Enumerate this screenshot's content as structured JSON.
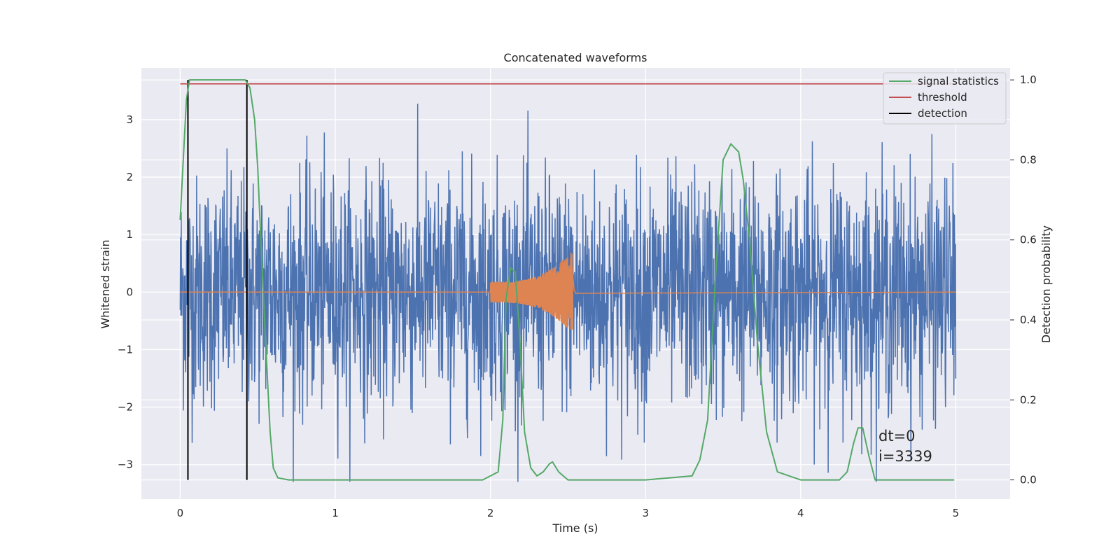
{
  "chart_data": {
    "type": "line",
    "title": "Concatenated waveforms",
    "xlabel": "Time (s)",
    "ylabel": "Whitened strain",
    "ylabel_right": "Detection probability",
    "xlim": [
      -0.25,
      5.35
    ],
    "ylim": [
      -3.6,
      3.9
    ],
    "ylim_right": [
      -0.048,
      1.03
    ],
    "x_ticks": [
      0,
      1,
      2,
      3,
      4,
      5
    ],
    "y_ticks": [
      -3,
      -2,
      -1,
      0,
      1,
      2,
      3
    ],
    "y_ticks_right": [
      0.0,
      0.2,
      0.4,
      0.6,
      0.8,
      1.0
    ],
    "grid": true,
    "legend_position": "upper right",
    "colors": {
      "strain": "#4c72b0",
      "waveform": "#dd8452",
      "signal": "#55a868",
      "threshold": "#c44e52",
      "detection": "#000000",
      "background": "#eaeaf2"
    },
    "legend": [
      "signal statistics",
      "threshold",
      "detection"
    ],
    "series": [
      {
        "axis": "left",
        "kind": "noise",
        "x_range": [
          0,
          5
        ],
        "amplitude_range": [
          -3.3,
          3.3
        ]
      },
      {
        "axis": "left",
        "kind": "chirp",
        "x_range": [
          2.0,
          2.53
        ],
        "amplitude_range": [
          -0.65,
          0.75
        ]
      },
      {
        "name": "signal statistics",
        "axis": "right",
        "x": [
          0,
          0.02,
          0.04,
          0.06,
          0.08,
          0.1,
          0.2,
          0.3,
          0.38,
          0.42,
          0.45,
          0.48,
          0.5,
          0.52,
          0.55,
          0.58,
          0.6,
          0.63,
          0.7,
          1.0,
          1.5,
          1.95,
          2.05,
          2.08,
          2.1,
          2.13,
          2.16,
          2.19,
          2.22,
          2.26,
          2.3,
          2.34,
          2.38,
          2.4,
          2.44,
          2.5,
          2.6,
          3.0,
          3.3,
          3.35,
          3.4,
          3.45,
          3.5,
          3.55,
          3.6,
          3.63,
          3.67,
          3.72,
          3.78,
          3.85,
          4.0,
          4.25,
          4.3,
          4.34,
          4.37,
          4.4,
          4.44,
          4.48,
          4.55,
          4.7,
          4.99
        ],
        "y": [
          0.65,
          0.8,
          0.95,
          1.0,
          1.0,
          1.0,
          1.0,
          1.0,
          1.0,
          1.0,
          0.98,
          0.9,
          0.78,
          0.6,
          0.35,
          0.12,
          0.03,
          0.005,
          0.0,
          0.0,
          0.0,
          0.0,
          0.02,
          0.15,
          0.45,
          0.53,
          0.52,
          0.35,
          0.12,
          0.03,
          0.01,
          0.02,
          0.04,
          0.045,
          0.02,
          0.0,
          0.0,
          0.0,
          0.01,
          0.05,
          0.15,
          0.5,
          0.8,
          0.84,
          0.82,
          0.75,
          0.6,
          0.35,
          0.12,
          0.02,
          0.0,
          0.0,
          0.02,
          0.09,
          0.13,
          0.13,
          0.06,
          0.0,
          0.0,
          0.0,
          0.0
        ]
      },
      {
        "name": "threshold",
        "axis": "right",
        "x": [
          0,
          5
        ],
        "y": [
          0.99,
          0.99
        ]
      },
      {
        "name": "detection",
        "axis": "right",
        "type": "vlines",
        "x": [
          0.05,
          0.43
        ],
        "y_range": [
          0.0,
          1.0
        ]
      }
    ],
    "annotations": [
      "dt=0",
      "i=3339"
    ]
  }
}
